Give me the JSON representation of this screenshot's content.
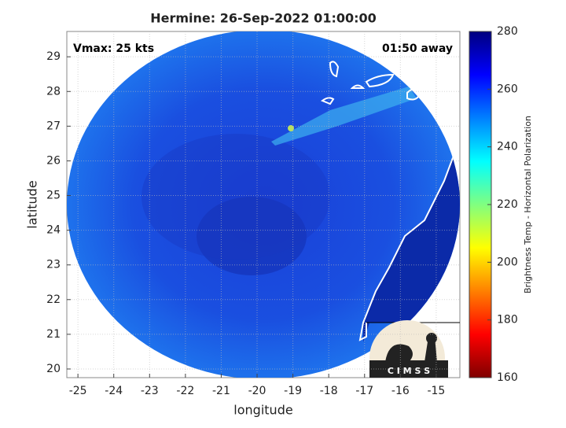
{
  "chart_data": {
    "type": "map",
    "title": "Hermine: 26-Sep-2022 01:00:00",
    "x_label": "longitude",
    "y_label": "latitude",
    "xlim": [
      -25.31,
      -14.34
    ],
    "ylim": [
      19.75,
      29.73
    ],
    "xticks": [
      -25,
      -24,
      -23,
      -22,
      -21,
      -20,
      -19,
      -18,
      -17,
      -16,
      -15
    ],
    "yticks": [
      20,
      21,
      22,
      23,
      24,
      25,
      26,
      27,
      28,
      29
    ],
    "grid": true,
    "annotations": [
      "Vmax: 25 kts",
      "01:50 away"
    ],
    "logo": "C I M S S",
    "colorbar": {
      "label": "Brightness Temp - Horizontal Polarization",
      "lim": [
        160,
        280
      ],
      "ticks": [
        160,
        180,
        200,
        220,
        240,
        260,
        280
      ],
      "colors": [
        "#7f0000",
        "#ff0000",
        "#ff8000",
        "#ffff00",
        "#80ff80",
        "#00ffff",
        "#0080ff",
        "#0000ff",
        "#00007f"
      ]
    }
  }
}
